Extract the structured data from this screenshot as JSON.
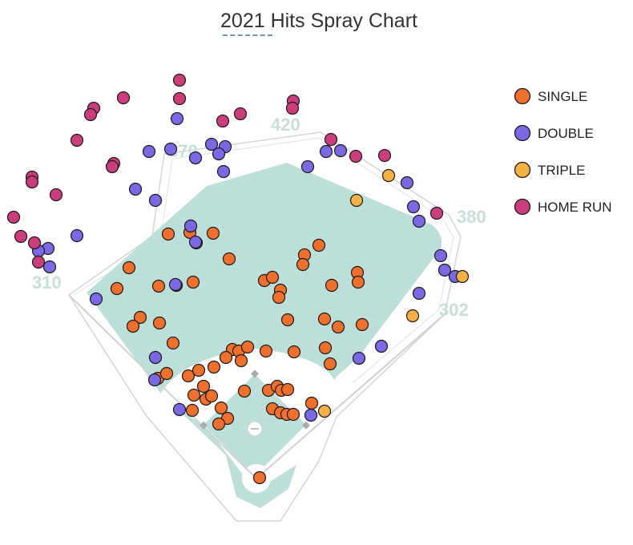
{
  "chart_data": {
    "type": "scatter",
    "title": "2021 Hits Spray Chart",
    "fence_distances": [
      "310",
      "370",
      "420",
      "380",
      "302"
    ],
    "legend_placement": "right",
    "colors": {
      "single": "#ef6f2c",
      "double": "#7b68e4",
      "triple": "#f6b146",
      "home_run": "#cc3d7e",
      "grass": "#bddfd9",
      "lines": "#cfcfcf",
      "distance_text": "#c6dfdb"
    },
    "series": [
      {
        "name": "SINGLE",
        "color": "#ef6f2c",
        "points": [
          [
            210,
            292
          ],
          [
            237,
            290
          ],
          [
            266,
            291
          ],
          [
            245,
            303
          ],
          [
            286,
            323
          ],
          [
            398,
            306
          ],
          [
            380,
            318
          ],
          [
            378,
            330
          ],
          [
            161,
            334
          ],
          [
            146,
            360
          ],
          [
            198,
            357
          ],
          [
            220,
            356
          ],
          [
            241,
            352
          ],
          [
            330,
            350
          ],
          [
            340,
            346
          ],
          [
            350,
            362
          ],
          [
            348,
            371
          ],
          [
            414,
            356
          ],
          [
            446,
            340
          ],
          [
            447,
            352
          ],
          [
            175,
            396
          ],
          [
            166,
            407
          ],
          [
            199,
            403
          ],
          [
            359,
            399
          ],
          [
            405,
            398
          ],
          [
            422,
            408
          ],
          [
            452,
            405
          ],
          [
            216,
            428
          ],
          [
            290,
            436
          ],
          [
            298,
            438
          ],
          [
            309,
            433
          ],
          [
            282,
            446
          ],
          [
            301,
            450
          ],
          [
            332,
            438
          ],
          [
            367,
            439
          ],
          [
            406,
            434
          ],
          [
            412,
            454
          ],
          [
            197,
            472
          ],
          [
            208,
            466
          ],
          [
            235,
            469
          ],
          [
            248,
            462
          ],
          [
            267,
            458
          ],
          [
            242,
            493
          ],
          [
            254,
            482
          ],
          [
            257,
            498
          ],
          [
            264,
            494
          ],
          [
            305,
            488
          ],
          [
            335,
            487
          ],
          [
            346,
            482
          ],
          [
            351,
            487
          ],
          [
            359,
            486
          ],
          [
            240,
            512
          ],
          [
            276,
            509
          ],
          [
            284,
            522
          ],
          [
            273,
            529
          ],
          [
            340,
            510
          ],
          [
            350,
            515
          ],
          [
            358,
            517
          ],
          [
            366,
            517
          ],
          [
            389,
            503
          ],
          [
            324,
            596
          ]
        ]
      },
      {
        "name": "DOUBLE",
        "color": "#7b68e4",
        "points": [
          [
            221,
            148
          ],
          [
            186,
            189
          ],
          [
            213,
            186
          ],
          [
            244,
            197
          ],
          [
            264,
            180
          ],
          [
            281,
            183
          ],
          [
            273,
            192
          ],
          [
            279,
            214
          ],
          [
            169,
            236
          ],
          [
            194,
            250
          ],
          [
            96,
            294
          ],
          [
            238,
            282
          ],
          [
            244,
            302
          ],
          [
            60,
            310
          ],
          [
            48,
            313
          ],
          [
            62,
            333
          ],
          [
            384,
            208
          ],
          [
            407,
            189
          ],
          [
            425,
            188
          ],
          [
            508,
            228
          ],
          [
            516,
            258
          ],
          [
            523,
            276
          ],
          [
            550,
            319
          ],
          [
            555,
            337
          ],
          [
            568,
            345
          ],
          [
            523,
            366
          ],
          [
            120,
            373
          ],
          [
            219,
            355
          ],
          [
            194,
            446
          ],
          [
            193,
            474
          ],
          [
            224,
            511
          ],
          [
            448,
            447
          ],
          [
            476,
            432
          ],
          [
            388,
            518
          ]
        ]
      },
      {
        "name": "TRIPLE",
        "color": "#f6b146",
        "points": [
          [
            485,
            219
          ],
          [
            445,
            250
          ],
          [
            577,
            345
          ],
          [
            515,
            394
          ],
          [
            405,
            513
          ]
        ]
      },
      {
        "name": "HOME RUN",
        "color": "#cc3d7e",
        "points": [
          [
            224,
            100
          ],
          [
            224,
            123
          ],
          [
            154,
            122
          ],
          [
            117,
            135
          ],
          [
            113,
            143
          ],
          [
            96,
            175
          ],
          [
            142,
            204
          ],
          [
            140,
            208
          ],
          [
            278,
            151
          ],
          [
            300,
            142
          ],
          [
            366,
            126
          ],
          [
            365,
            135
          ],
          [
            413,
            174
          ],
          [
            444,
            195
          ],
          [
            480,
            194
          ],
          [
            40,
            221
          ],
          [
            40,
            227
          ],
          [
            70,
            243
          ],
          [
            17,
            271
          ],
          [
            26,
            295
          ],
          [
            43,
            303
          ],
          [
            48,
            327
          ],
          [
            545,
            266
          ]
        ]
      }
    ]
  }
}
